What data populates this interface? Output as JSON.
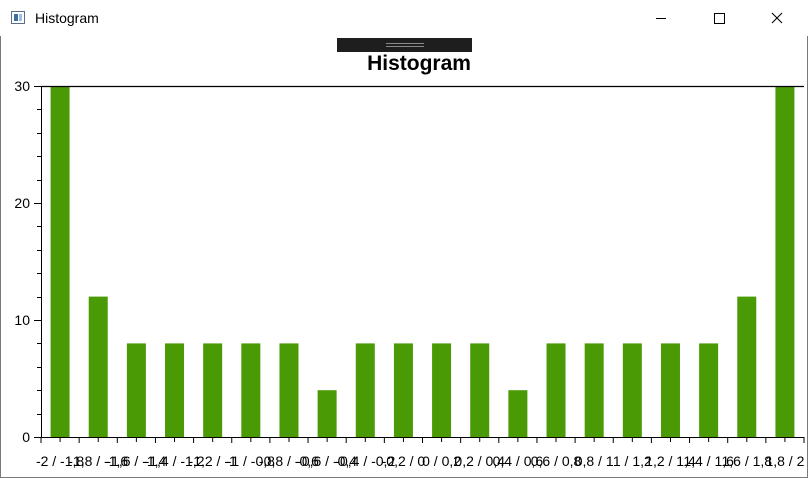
{
  "window": {
    "title": "Histogram",
    "icon": "app-window-icon",
    "controls": {
      "minimize_icon": "minimize-icon",
      "maximize_icon": "maximize-icon",
      "close_icon": "close-icon"
    }
  },
  "chart_data": {
    "type": "bar",
    "title": "Histogram",
    "xlabel": "",
    "ylabel": "",
    "ylim": [
      0,
      30
    ],
    "yticks": [
      0,
      10,
      20,
      30
    ],
    "bar_color": "#4a9a06",
    "grid": false,
    "categories": [
      "-2 / -1,8",
      "-1,8 / -1,6",
      "-1,6 / -1,4",
      "-1,4 / -1,2",
      "-1,2 / -1",
      "-1 / -0,8",
      "-0,8 / -0,6",
      "-0,6 / -0,4",
      "-0,4 / -0,2",
      "-0,2 / 0",
      "0 / 0,2",
      "0,2 / 0,4",
      "0,4 / 0,6",
      "0,6 / 0,8",
      "0,8 / 1",
      "1 / 1,2",
      "1,2 / 1,4",
      "1,4 / 1,6",
      "1,6 / 1,8",
      "1,8 / 2"
    ],
    "values": [
      30,
      12,
      8,
      8,
      8,
      8,
      8,
      4,
      8,
      8,
      8,
      8,
      4,
      8,
      8,
      8,
      8,
      8,
      12,
      30
    ]
  }
}
